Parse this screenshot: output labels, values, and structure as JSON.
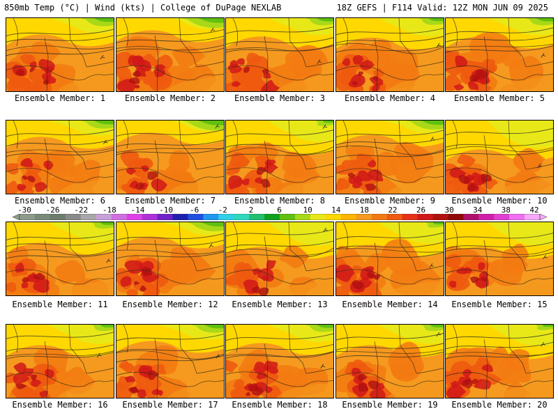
{
  "header": {
    "title_left": "850mb Temp (°C) | Wind (kts) | College of DuPage NEXLAB",
    "title_right": "18Z GEFS | F114 Valid: 12Z MON JUN 09 2025"
  },
  "members": [
    {
      "label": "Ensemble Member: 1",
      "hot": 0.85,
      "cool": 0.7
    },
    {
      "label": "Ensemble Member: 2",
      "hot": 0.95,
      "cool": 0.9
    },
    {
      "label": "Ensemble Member: 3",
      "hot": 0.8,
      "cool": 0.6
    },
    {
      "label": "Ensemble Member: 4",
      "hot": 0.85,
      "cool": 0.55
    },
    {
      "label": "Ensemble Member: 5",
      "hot": 0.9,
      "cool": 0.6
    },
    {
      "label": "Ensemble Member: 6",
      "hot": 0.6,
      "cool": 0.7
    },
    {
      "label": "Ensemble Member: 7",
      "hot": 0.75,
      "cool": 0.9
    },
    {
      "label": "Ensemble Member: 8",
      "hot": 0.7,
      "cool": 0.4
    },
    {
      "label": "Ensemble Member: 9",
      "hot": 0.8,
      "cool": 0.8
    },
    {
      "label": "Ensemble Member: 10",
      "hot": 0.9,
      "cool": 0.1
    },
    {
      "label": "Ensemble Member: 11",
      "hot": 0.65,
      "cool": 0.5
    },
    {
      "label": "Ensemble Member: 12",
      "hot": 0.85,
      "cool": 0.8
    },
    {
      "label": "Ensemble Member: 13",
      "hot": 0.7,
      "cool": 0.3
    },
    {
      "label": "Ensemble Member: 14",
      "hot": 0.85,
      "cool": 0.4
    },
    {
      "label": "Ensemble Member: 15",
      "hot": 0.8,
      "cool": 0.3
    },
    {
      "label": "Ensemble Member: 16",
      "hot": 0.8,
      "cool": 0.5
    },
    {
      "label": "Ensemble Member: 17",
      "hot": 0.85,
      "cool": 0.7
    },
    {
      "label": "Ensemble Member: 18",
      "hot": 0.9,
      "cool": 0.6
    },
    {
      "label": "Ensemble Member: 19",
      "hot": 0.9,
      "cool": 0.5
    },
    {
      "label": "Ensemble Member: 20",
      "hot": 0.9,
      "cool": 0.4
    }
  ],
  "colorbar": {
    "labels": [
      "-30",
      "-26",
      "-22",
      "-18",
      "-14",
      "-10",
      "-6",
      "-2",
      "2",
      "6",
      "10",
      "14",
      "18",
      "22",
      "26",
      "30",
      "34",
      "38",
      "42"
    ],
    "colors": [
      "#8c9b8c",
      "#7a8a7a",
      "#6c7c6c",
      "#8a8a8a",
      "#a8a8a8",
      "#c8a0d8",
      "#d070e0",
      "#e040e8",
      "#b030d8",
      "#7020c8",
      "#2020b0",
      "#2050e0",
      "#2098f0",
      "#30d0e8",
      "#30d8c0",
      "#20c070",
      "#10a020",
      "#60c010",
      "#a8d818",
      "#e8e818",
      "#ffd800",
      "#ffb400",
      "#f59a1e",
      "#f27a12",
      "#ee5a10",
      "#e83018",
      "#d01818",
      "#b01010",
      "#900808",
      "#b0106a",
      "#d020a8",
      "#e040d0",
      "#f070f0",
      "#f8a8f8"
    ]
  }
}
